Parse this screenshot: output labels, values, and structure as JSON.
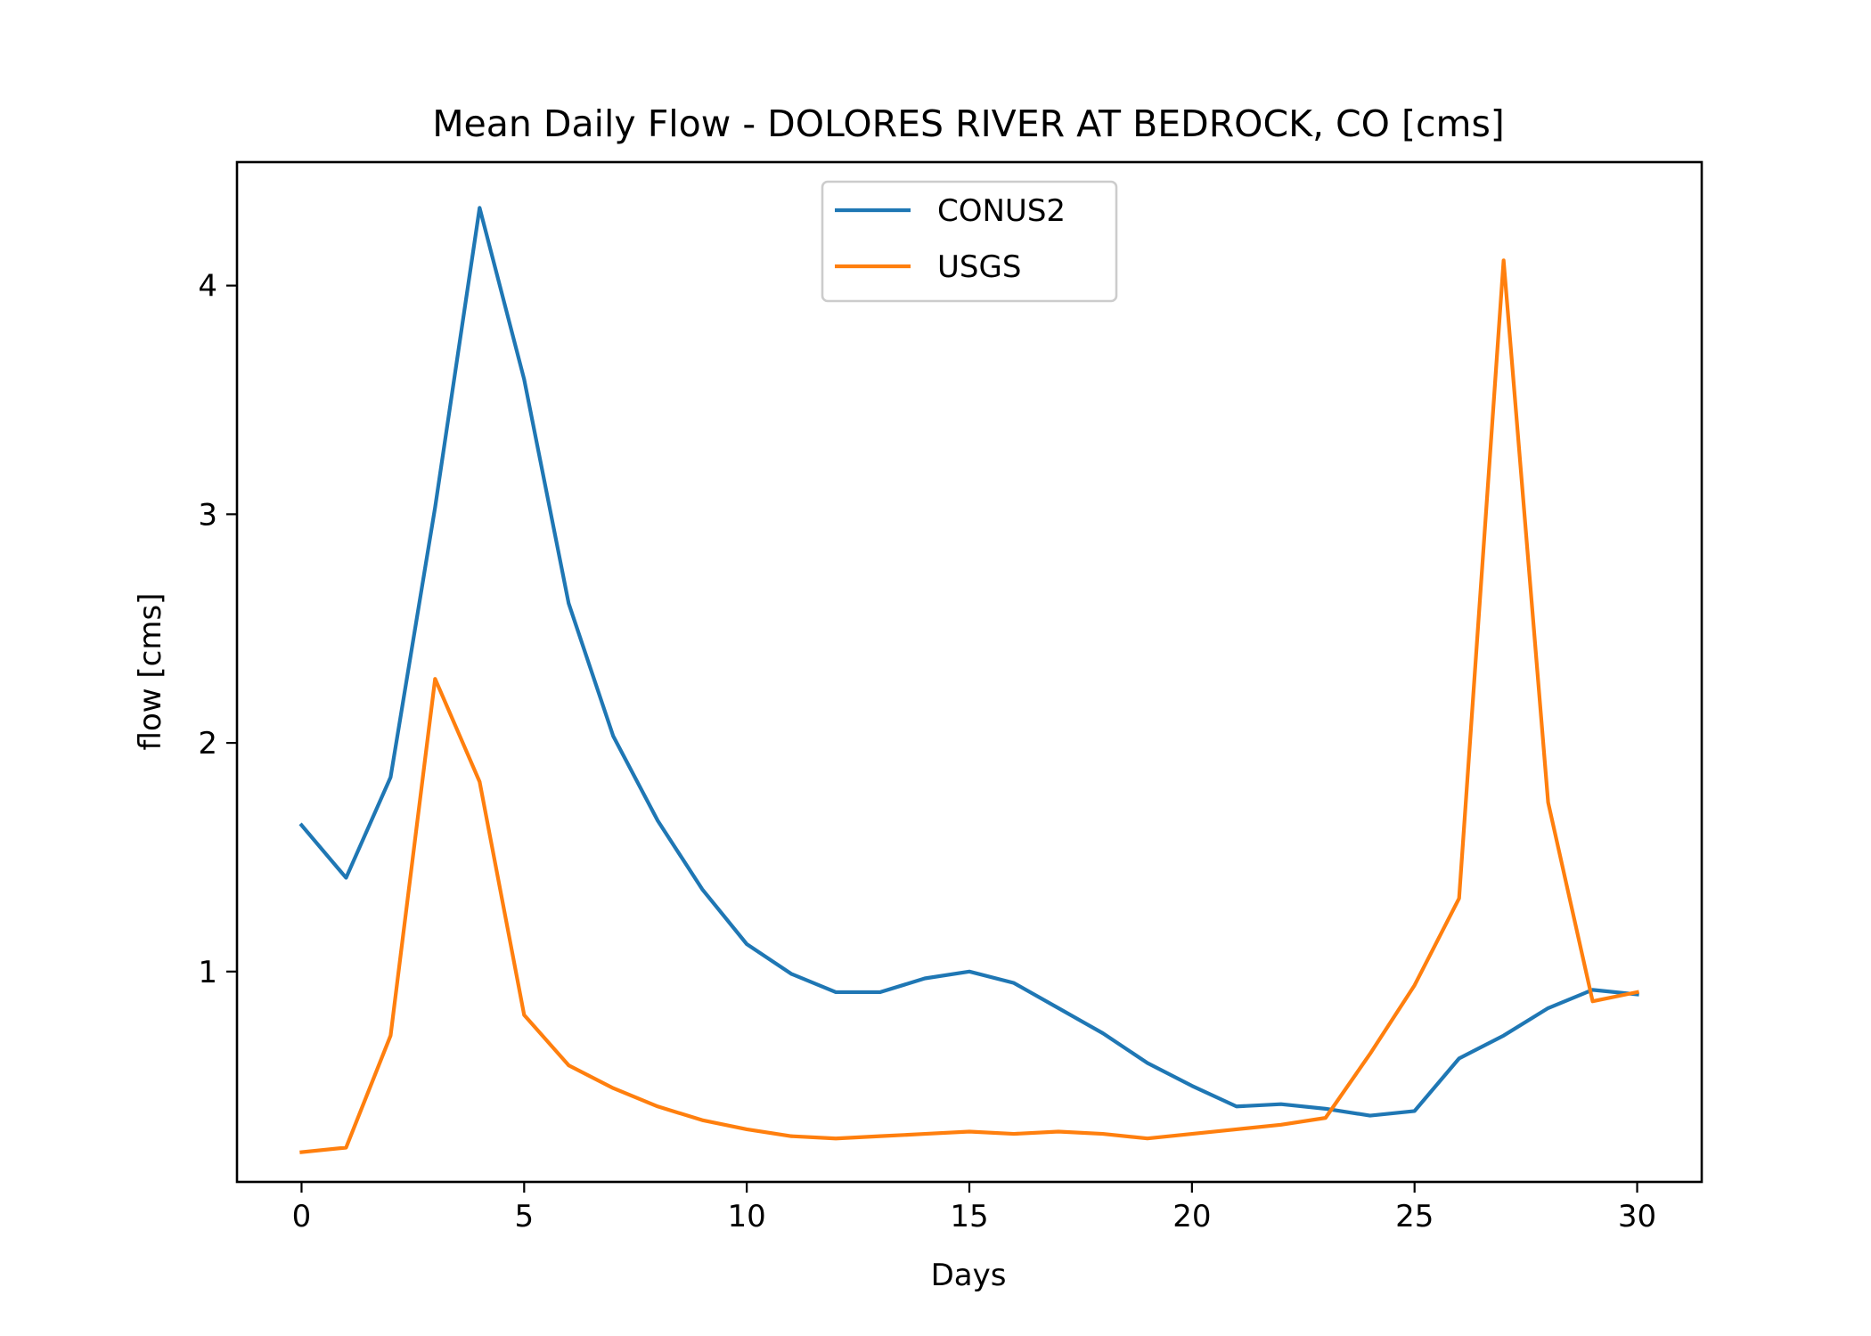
{
  "chart_data": {
    "type": "line",
    "title": "Mean Daily Flow - DOLORES RIVER AT BEDROCK, CO [cms]",
    "xlabel": "Days",
    "ylabel": "flow [cms]",
    "xlim": [
      -1.45,
      31.45
    ],
    "ylim": [
      0.08,
      4.54
    ],
    "xticks": [
      0,
      5,
      10,
      15,
      20,
      25,
      30
    ],
    "yticks": [
      1,
      2,
      3,
      4
    ],
    "grid": false,
    "legend_position": "upper-center",
    "x": [
      0,
      1,
      2,
      3,
      4,
      5,
      6,
      7,
      8,
      9,
      10,
      11,
      12,
      13,
      14,
      15,
      16,
      17,
      18,
      19,
      20,
      21,
      22,
      23,
      24,
      25,
      26,
      27,
      28,
      29,
      30
    ],
    "series": [
      {
        "name": "CONUS2",
        "color": "#1f77b4",
        "values": [
          1.64,
          1.41,
          1.85,
          3.03,
          4.34,
          3.59,
          2.61,
          2.03,
          1.66,
          1.36,
          1.12,
          0.99,
          0.91,
          0.91,
          0.97,
          1.0,
          0.95,
          0.84,
          0.73,
          0.6,
          0.5,
          0.41,
          0.42,
          0.4,
          0.37,
          0.39,
          0.62,
          0.72,
          0.84,
          0.92,
          0.9
        ]
      },
      {
        "name": "USGS",
        "color": "#ff7f0e",
        "values": [
          0.21,
          0.23,
          0.72,
          2.28,
          1.83,
          0.81,
          0.59,
          0.49,
          0.41,
          0.35,
          0.31,
          0.28,
          0.27,
          0.28,
          0.29,
          0.3,
          0.29,
          0.3,
          0.29,
          0.27,
          0.29,
          0.31,
          0.33,
          0.36,
          0.64,
          0.94,
          1.32,
          4.11,
          1.74,
          0.87,
          0.91
        ]
      }
    ]
  }
}
